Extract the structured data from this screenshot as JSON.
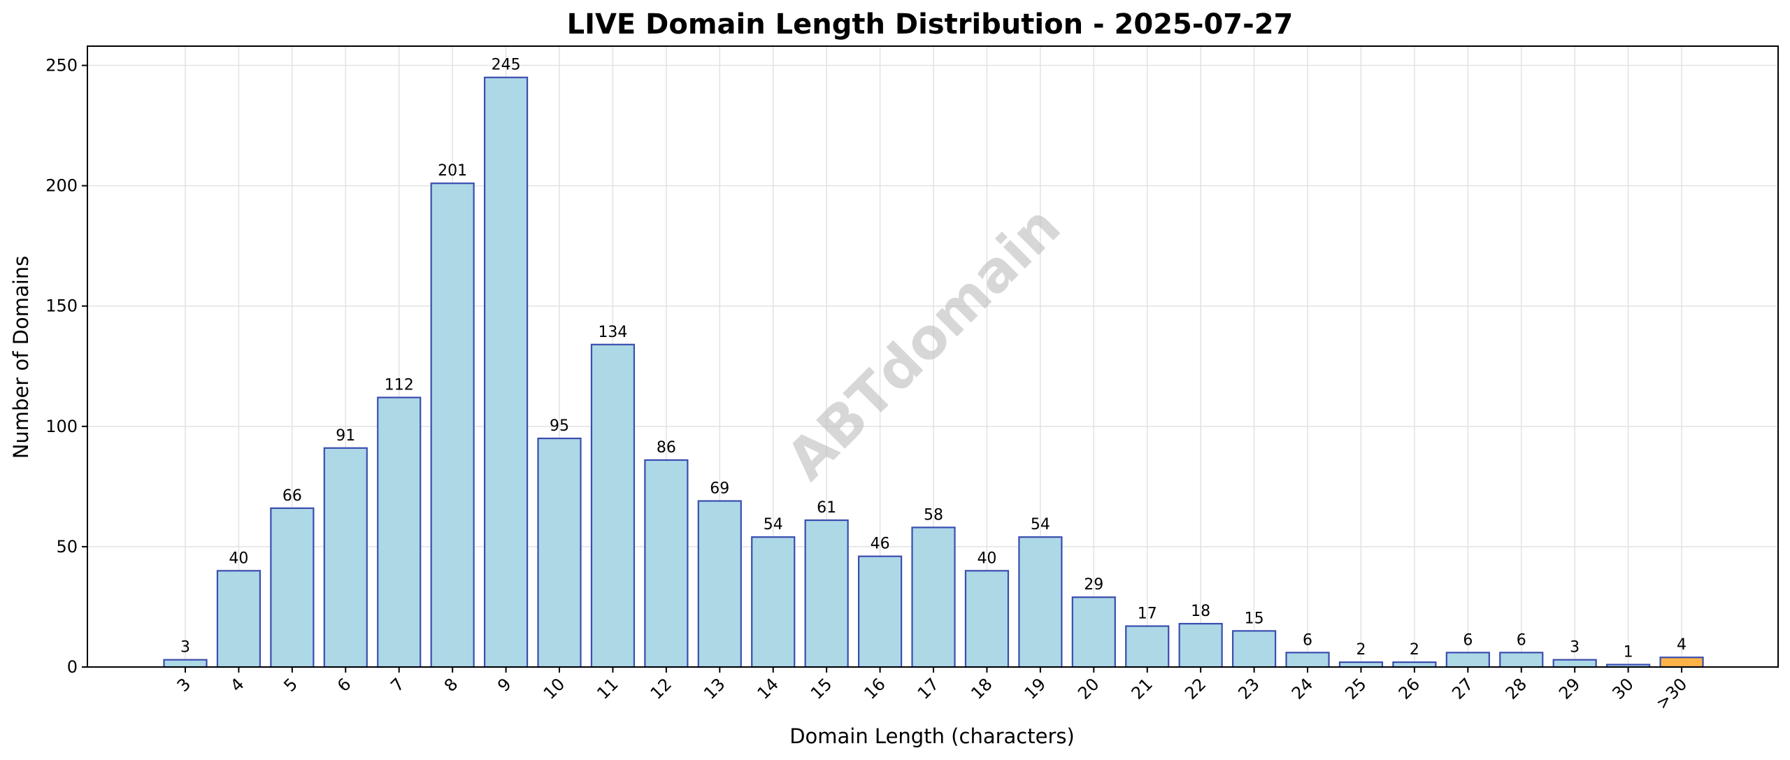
{
  "chart_data": {
    "type": "bar",
    "title": "LIVE Domain Length Distribution - 2025-07-27",
    "xlabel": "Domain Length (characters)",
    "ylabel": "Number of Domains",
    "categories": [
      "3",
      "4",
      "5",
      "6",
      "7",
      "8",
      "9",
      "10",
      "11",
      "12",
      "13",
      "14",
      "15",
      "16",
      "17",
      "18",
      "19",
      "20",
      "21",
      "22",
      "23",
      "24",
      "25",
      "26",
      "27",
      "28",
      "29",
      "30",
      ">30"
    ],
    "values": [
      3,
      40,
      66,
      91,
      112,
      201,
      245,
      95,
      134,
      86,
      69,
      54,
      61,
      46,
      58,
      40,
      54,
      29,
      17,
      18,
      15,
      6,
      2,
      2,
      6,
      6,
      3,
      1,
      4
    ],
    "ylim": [
      0,
      258
    ],
    "yticks": [
      0,
      50,
      100,
      150,
      200,
      250
    ],
    "grid": true,
    "colors": {
      "bar": "#add8e6",
      "bar_edge": "#3a4db0",
      "highlight_bar": "#ffb347",
      "grid": "#e2e2e2"
    },
    "highlight_category": ">30",
    "watermark": "ABTdomain"
  }
}
